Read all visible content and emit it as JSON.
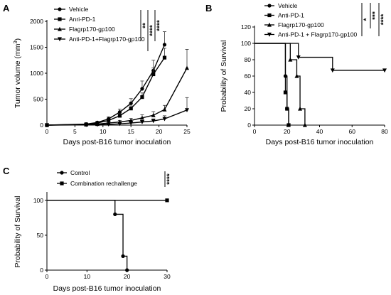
{
  "chart_data": [
    {
      "panel": "A",
      "type": "line",
      "xlabel": "Days post-B16 tumor inoculation",
      "ylabel": "Tumor volume (mm",
      "ylabel_sup": "3",
      "ylabel_end": ")",
      "xlim": [
        0,
        25
      ],
      "ylim": [
        0,
        2000
      ],
      "xticks": [
        "0",
        "5",
        "10",
        "15",
        "20",
        "25"
      ],
      "yticks": [
        "0",
        "500",
        "1000",
        "1500",
        "2000"
      ],
      "xtick_values": [
        0,
        5,
        10,
        15,
        20,
        25
      ],
      "ytick_values": [
        0,
        500,
        1000,
        1500,
        2000
      ],
      "legend_position": "top-right",
      "series": [
        {
          "name": "Vehicle",
          "marker": "circle",
          "x": [
            0,
            7,
            9,
            11,
            13,
            15,
            17,
            19,
            21
          ],
          "y": [
            0,
            20,
            50,
            120,
            250,
            420,
            700,
            1050,
            1550
          ],
          "err": [
            0,
            10,
            20,
            40,
            60,
            90,
            150,
            200,
            250
          ]
        },
        {
          "name": "Anri-PD-1",
          "marker": "square",
          "x": [
            0,
            7,
            9,
            11,
            13,
            15,
            17,
            19,
            21
          ],
          "y": [
            0,
            15,
            40,
            90,
            180,
            320,
            540,
            980,
            1300
          ],
          "err": [
            0,
            10,
            15,
            25,
            40,
            50,
            80,
            120,
            180
          ]
        },
        {
          "name": "Flagrp170-gp100",
          "marker": "triangle",
          "x": [
            0,
            7,
            9,
            11,
            13,
            15,
            17,
            19,
            21,
            25
          ],
          "y": [
            0,
            10,
            20,
            40,
            60,
            90,
            140,
            190,
            300,
            1100
          ],
          "err": [
            0,
            5,
            10,
            20,
            30,
            40,
            60,
            70,
            80,
            360
          ]
        },
        {
          "name": "Anti-PD-1+Flagrp170-gp100",
          "marker": "inverted-triangle",
          "x": [
            0,
            7,
            9,
            11,
            13,
            15,
            17,
            19,
            21,
            25
          ],
          "y": [
            0,
            5,
            10,
            15,
            25,
            40,
            60,
            80,
            120,
            290
          ],
          "err": [
            0,
            3,
            5,
            8,
            12,
            20,
            30,
            40,
            60,
            240
          ]
        }
      ],
      "significance": [
        "**",
        "****",
        "****"
      ]
    },
    {
      "panel": "B",
      "type": "line",
      "xlabel": "Days post-B16 tumor inoculation",
      "ylabel": "Probability of Survival",
      "xlim": [
        0,
        80
      ],
      "ylim": [
        0,
        120
      ],
      "xticks": [
        "0",
        "20",
        "40",
        "60",
        "80"
      ],
      "yticks": [
        "0",
        "20",
        "40",
        "60",
        "80",
        "100",
        "120"
      ],
      "xtick_values": [
        0,
        20,
        40,
        60,
        80
      ],
      "ytick_values": [
        0,
        20,
        40,
        60,
        80,
        100,
        120
      ],
      "legend_position": "top-right",
      "series": [
        {
          "name": "Vehicle",
          "marker": "circle",
          "x": [
            0,
            19,
            19,
            20,
            20,
            21,
            21
          ],
          "y": [
            100,
            100,
            60,
            60,
            20,
            20,
            0
          ]
        },
        {
          "name": "Anti-PD-1",
          "marker": "square",
          "x": [
            0,
            19,
            19,
            20,
            20,
            21,
            21
          ],
          "y": [
            100,
            100,
            40,
            40,
            20,
            20,
            0
          ]
        },
        {
          "name": "Flagrp170-gp100",
          "marker": "triangle",
          "x": [
            0,
            22,
            22,
            26,
            26,
            28,
            28,
            31,
            31
          ],
          "y": [
            100,
            100,
            80,
            80,
            60,
            60,
            20,
            20,
            0
          ]
        },
        {
          "name": "Anti-PD-1 + Flagrp170-gp100",
          "marker": "inverted-triangle",
          "x": [
            0,
            27,
            27,
            48,
            48,
            60,
            80
          ],
          "y": [
            100,
            100,
            83,
            83,
            67,
            67,
            67
          ]
        }
      ],
      "significance": [
        "*",
        "***",
        "****"
      ]
    },
    {
      "panel": "C",
      "type": "line",
      "xlabel": "Days post-B16 tumor inoculation",
      "ylabel": "Probability of Survival",
      "xlim": [
        0,
        30
      ],
      "ylim": [
        0,
        110
      ],
      "xticks": [
        "0",
        "10",
        "20",
        "30"
      ],
      "yticks": [
        "0",
        "50",
        "100"
      ],
      "xtick_values": [
        0,
        10,
        20,
        30
      ],
      "ytick_values": [
        0,
        50,
        100
      ],
      "legend_position": "top-left",
      "series": [
        {
          "name": "Control",
          "marker": "circle",
          "x": [
            0,
            17,
            17,
            19,
            19,
            20,
            20
          ],
          "y": [
            100,
            100,
            80,
            80,
            20,
            20,
            0
          ]
        },
        {
          "name": "Combination rechallenge",
          "marker": "square",
          "x": [
            0,
            30
          ],
          "y": [
            100,
            100
          ]
        }
      ],
      "significance": [
        "****"
      ]
    }
  ]
}
